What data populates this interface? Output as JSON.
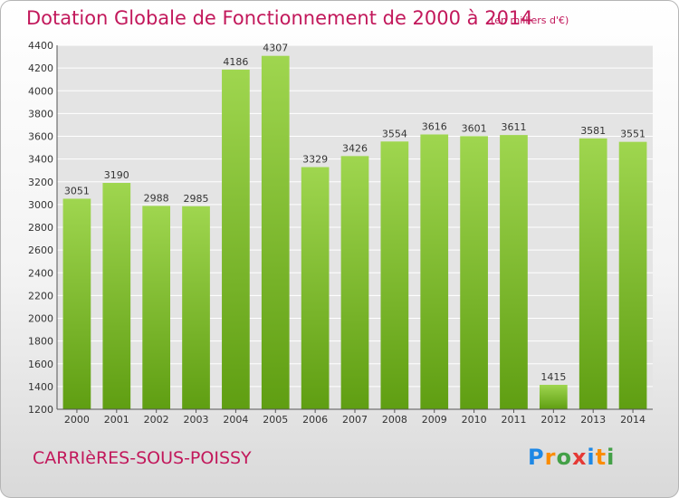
{
  "header": {
    "title": "Dotation Globale de Fonctionnement de 2000 à 2014",
    "subtitle": "(en milliers d'€)"
  },
  "footer": {
    "commune": "CARRIèRES-SOUS-POISSY",
    "logo_letters": [
      "P",
      "r",
      "o",
      "x",
      "i",
      "t",
      "i"
    ],
    "logo_colors": [
      "#1e88e5",
      "#fb8c00",
      "#43a047",
      "#e53935",
      "#1e88e5",
      "#fb8c00",
      "#43a047"
    ]
  },
  "colors": {
    "bar_light": "#9fd64f",
    "bar_dark": "#5f9e12",
    "grid": "#ffffff",
    "plot_bg": "#e4e4e4",
    "text": "#333333",
    "title": "#c2185b"
  },
  "chart_data": {
    "type": "bar",
    "title": "Dotation Globale de Fonctionnement de 2000 à 2014",
    "subtitle": "(en milliers d'€)",
    "categories": [
      "2000",
      "2001",
      "2002",
      "2003",
      "2004",
      "2005",
      "2006",
      "2007",
      "2008",
      "2009",
      "2010",
      "2011",
      "2012",
      "2013",
      "2014"
    ],
    "values": [
      3051,
      3190,
      2988,
      2985,
      4186,
      4307,
      3329,
      3426,
      3554,
      3616,
      3601,
      3611,
      1415,
      3581,
      3551
    ],
    "ylim": [
      1200,
      4400
    ],
    "yticks": [
      1200,
      1400,
      1600,
      1800,
      2000,
      2200,
      2400,
      2600,
      2800,
      3000,
      3200,
      3400,
      3600,
      3800,
      4000,
      4200,
      4400
    ],
    "grid": true,
    "xlabel": "",
    "ylabel": ""
  }
}
